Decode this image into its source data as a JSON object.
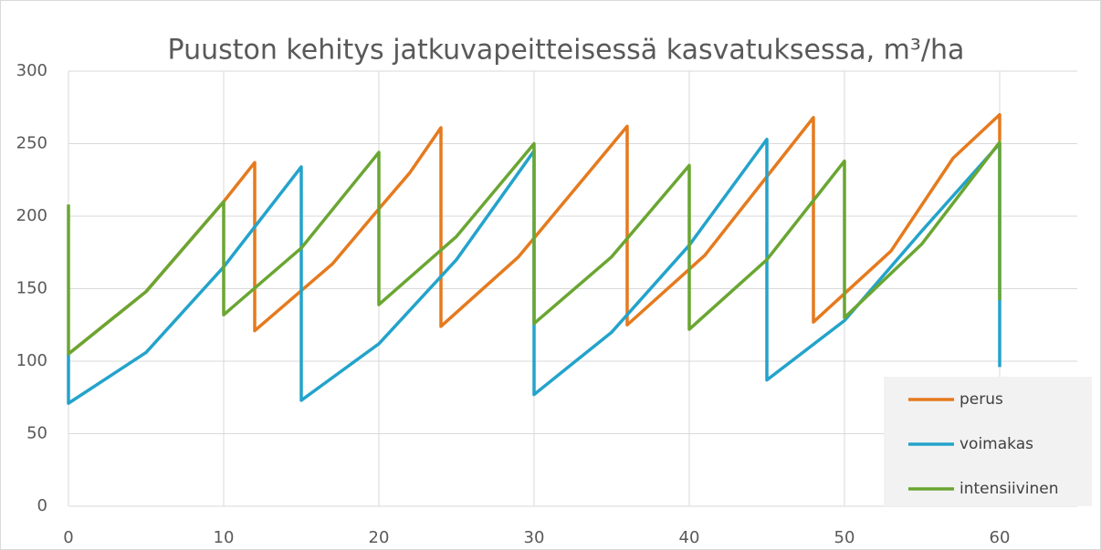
{
  "chart_data": {
    "type": "line",
    "title": "Puuston kehitys jatkuvapeitteisessä kasvatuksessa, m³/ha",
    "xlim": [
      0,
      65
    ],
    "xticks": [
      0,
      10,
      20,
      30,
      40,
      50,
      60
    ],
    "ylim": [
      0,
      300
    ],
    "yticks": [
      0,
      50,
      100,
      150,
      200,
      250,
      300
    ],
    "grid": true,
    "legend": "lower right",
    "series": [
      {
        "name": "perus",
        "color": "#e57a1e",
        "x": [
          0,
          5,
          10,
          12,
          12,
          17,
          20,
          22,
          24,
          24,
          29,
          36,
          36,
          41,
          48,
          48,
          53,
          57,
          60,
          60
        ],
        "values": [
          105,
          148,
          210,
          237,
          121,
          167,
          205,
          230,
          261,
          124,
          172,
          262,
          125,
          173,
          268,
          127,
          176,
          240,
          270,
          252
        ]
      },
      {
        "name": "voimakas",
        "color": "#23a3cb",
        "x": [
          0,
          0,
          5,
          10,
          15,
          15,
          20,
          25,
          30,
          30,
          35,
          40,
          45,
          45,
          50,
          55,
          60,
          60
        ],
        "values": [
          105,
          71,
          106,
          165,
          234,
          73,
          112,
          170,
          245,
          77,
          120,
          180,
          253,
          87,
          128,
          190,
          250,
          96
        ]
      },
      {
        "name": "intensiivinen",
        "color": "#6aa632",
        "x": [
          0,
          0,
          5,
          10,
          10,
          15,
          20,
          20,
          25,
          30,
          30,
          35,
          40,
          40,
          45,
          50,
          50,
          55,
          60,
          60
        ],
        "values": [
          208,
          105,
          148,
          210,
          132,
          178,
          244,
          139,
          186,
          250,
          126,
          172,
          235,
          122,
          170,
          238,
          130,
          181,
          251,
          142
        ]
      }
    ]
  }
}
